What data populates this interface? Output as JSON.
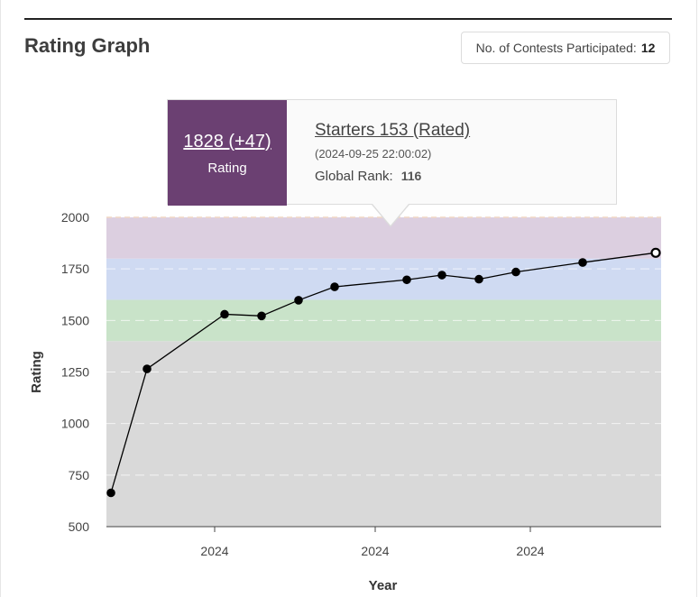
{
  "header": {
    "title": "Rating Graph",
    "contests_label": "No. of Contests Participated:",
    "contests_count": "12"
  },
  "tooltip": {
    "rating_value": "1828 (+47)",
    "rating_label": "Rating",
    "contest_name": "Starters 153 (Rated)",
    "date": "(2024-09-25 22:00:02)",
    "rank_label": "Global Rank:",
    "rank_value": "116",
    "accent_color": "#6b4072"
  },
  "chart_data": {
    "type": "line",
    "title": "",
    "xlabel": "Year",
    "ylabel": "Rating",
    "ylim": [
      500,
      2000
    ],
    "yticks": [
      500,
      750,
      1000,
      1250,
      1500,
      1750,
      2000
    ],
    "xtick_labels": [
      "2024",
      "2024",
      "2024"
    ],
    "bands": [
      {
        "from": 500,
        "to": 1400,
        "color": "#d9d9d9"
      },
      {
        "from": 1400,
        "to": 1600,
        "color": "#c9e3c9"
      },
      {
        "from": 1600,
        "to": 1800,
        "color": "#cfdaf2"
      },
      {
        "from": 1800,
        "to": 2000,
        "color": "#dccfe0"
      }
    ],
    "grid": true,
    "series": [
      {
        "values": [
          664,
          1265,
          1530,
          1522,
          1598,
          1663,
          1697,
          1720,
          1700,
          1735,
          1781,
          1828
        ],
        "color": "#000000"
      }
    ]
  }
}
